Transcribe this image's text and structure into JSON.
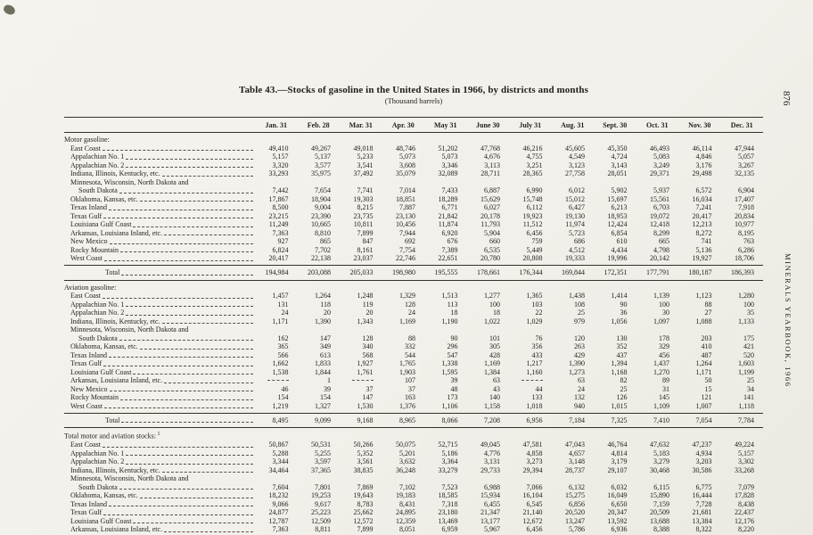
{
  "page": {
    "page_number": "876",
    "margin_label": "MINERALS YEARBOOK, 1966",
    "title": "Table 43.—Stocks of gasoline in the United States in 1966, by districts and months",
    "subtitle": "(Thousand barrels)"
  },
  "colors": {
    "paper": "#f2f1ec",
    "ink": "#201f1b"
  },
  "table": {
    "columns": [
      "Jan. 31",
      "Feb. 28",
      "Mar. 31",
      "Apr. 30",
      "May 31",
      "June 30",
      "July 31",
      "Aug. 31",
      "Sept. 30",
      "Oct. 31",
      "Nov. 30",
      "Dec. 31"
    ],
    "sections": [
      {
        "heading": "Motor gasoline:",
        "rows": [
          {
            "label": "East Coast",
            "values": [
              "49,410",
              "49,267",
              "49,018",
              "48,746",
              "51,202",
              "47,768",
              "46,216",
              "45,605",
              "45,350",
              "46,493",
              "46,114",
              "47,944"
            ]
          },
          {
            "label": "Appalachian No. 1",
            "values": [
              "5,157",
              "5,137",
              "5,233",
              "5,073",
              "5,073",
              "4,676",
              "4,755",
              "4,549",
              "4,724",
              "5,083",
              "4,846",
              "5,057"
            ]
          },
          {
            "label": "Appalachian No. 2",
            "values": [
              "3,320",
              "3,577",
              "3,541",
              "3,608",
              "3,346",
              "3,113",
              "3,251",
              "3,123",
              "3,143",
              "3,249",
              "3,176",
              "3,267"
            ]
          },
          {
            "label": "Indiana, Illinois, Kentucky, etc.",
            "values": [
              "33,293",
              "35,975",
              "37,492",
              "35,079",
              "32,089",
              "28,711",
              "28,365",
              "27,758",
              "28,051",
              "29,371",
              "29,498",
              "32,135"
            ]
          },
          {
            "label": "Minnesota, Wisconsin, North Dakota and",
            "label2": "South Dakota",
            "values": [
              "7,442",
              "7,654",
              "7,741",
              "7,014",
              "7,433",
              "6,887",
              "6,990",
              "6,012",
              "5,902",
              "5,937",
              "6,572",
              "6,904"
            ]
          },
          {
            "label": "Oklahoma, Kansas, etc.",
            "values": [
              "17,867",
              "18,904",
              "19,303",
              "18,851",
              "18,289",
              "15,629",
              "15,748",
              "15,012",
              "15,697",
              "15,561",
              "16,034",
              "17,407"
            ]
          },
          {
            "label": "Texas Inland",
            "values": [
              "8,500",
              "9,004",
              "8,215",
              "7,887",
              "6,771",
              "6,027",
              "6,112",
              "6,427",
              "6,213",
              "6,703",
              "7,241",
              "7,918"
            ]
          },
          {
            "label": "Texas Gulf",
            "values": [
              "23,215",
              "23,390",
              "23,735",
              "23,130",
              "21,842",
              "20,178",
              "19,923",
              "19,130",
              "18,953",
              "19,072",
              "20,417",
              "20,834"
            ]
          },
          {
            "label": "Louisiana Gulf Coast",
            "values": [
              "11,249",
              "10,665",
              "10,811",
              "10,456",
              "11,874",
              "11,793",
              "11,512",
              "11,974",
              "12,424",
              "12,418",
              "12,213",
              "10,977"
            ]
          },
          {
            "label": "Arkansas, Louisiana Inland, etc.",
            "values": [
              "7,363",
              "8,810",
              "7,899",
              "7,944",
              "6,920",
              "5,904",
              "6,456",
              "5,723",
              "6,854",
              "8,299",
              "8,272",
              "8,195"
            ]
          },
          {
            "label": "New Mexico",
            "values": [
              "927",
              "865",
              "847",
              "692",
              "676",
              "660",
              "759",
              "686",
              "610",
              "665",
              "741",
              "763"
            ]
          },
          {
            "label": "Rocky Mountain",
            "values": [
              "6,824",
              "7,702",
              "8,161",
              "7,754",
              "7,389",
              "6,535",
              "5,449",
              "4,512",
              "4,434",
              "4,798",
              "5,136",
              "6,286"
            ]
          },
          {
            "label": "West Coast",
            "values": [
              "20,417",
              "22,138",
              "23,037",
              "22,746",
              "22,651",
              "20,780",
              "20,808",
              "19,333",
              "19,996",
              "20,142",
              "19,927",
              "18,706"
            ]
          }
        ],
        "total": {
          "label": "Total",
          "values": [
            "194,984",
            "203,088",
            "205,033",
            "198,980",
            "195,555",
            "178,661",
            "176,344",
            "169,844",
            "172,351",
            "177,791",
            "180,187",
            "186,393"
          ]
        }
      },
      {
        "heading": "Aviation gasoline:",
        "rows": [
          {
            "label": "East Coast",
            "values": [
              "1,457",
              "1,264",
              "1,248",
              "1,329",
              "1,513",
              "1,277",
              "1,365",
              "1,438",
              "1,414",
              "1,139",
              "1,123",
              "1,280"
            ]
          },
          {
            "label": "Appalachian No. 1",
            "values": [
              "131",
              "118",
              "119",
              "128",
              "113",
              "100",
              "103",
              "108",
              "90",
              "100",
              "88",
              "100"
            ]
          },
          {
            "label": "Appalachian No. 2",
            "values": [
              "24",
              "20",
              "20",
              "24",
              "18",
              "18",
              "22",
              "25",
              "36",
              "30",
              "27",
              "35"
            ]
          },
          {
            "label": "Indiana, Illinois, Kentucky, etc.",
            "values": [
              "1,171",
              "1,390",
              "1,343",
              "1,169",
              "1,190",
              "1,022",
              "1,029",
              "979",
              "1,056",
              "1,097",
              "1,088",
              "1,133"
            ]
          },
          {
            "label": "Minnesota, Wisconsin, North Dakota and",
            "label2": "South Dakota",
            "values": [
              "162",
              "147",
              "128",
              "88",
              "90",
              "101",
              "76",
              "120",
              "130",
              "178",
              "203",
              "175"
            ]
          },
          {
            "label": "Oklahoma, Kansas, etc.",
            "values": [
              "365",
              "349",
              "340",
              "332",
              "296",
              "305",
              "356",
              "263",
              "352",
              "329",
              "410",
              "421"
            ]
          },
          {
            "label": "Texas Inland",
            "values": [
              "566",
              "613",
              "568",
              "544",
              "547",
              "428",
              "433",
              "429",
              "437",
              "456",
              "487",
              "520"
            ]
          },
          {
            "label": "Texas Gulf",
            "values": [
              "1,662",
              "1,833",
              "1,927",
              "1,765",
              "1,338",
              "1,169",
              "1,217",
              "1,390",
              "1,394",
              "1,437",
              "1,264",
              "1,603"
            ]
          },
          {
            "label": "Louisiana Gulf Coast",
            "values": [
              "1,538",
              "1,844",
              "1,761",
              "1,903",
              "1,595",
              "1,384",
              "1,160",
              "1,273",
              "1,168",
              "1,270",
              "1,171",
              "1,199"
            ]
          },
          {
            "label": "Arkansas, Louisiana Inland, etc.",
            "values": [
              "",
              "1",
              "",
              "107",
              "39",
              "63",
              "",
              "63",
              "82",
              "89",
              "50",
              "25"
            ]
          },
          {
            "label": "New Mexico",
            "values": [
              "46",
              "39",
              "37",
              "37",
              "48",
              "43",
              "44",
              "24",
              "25",
              "31",
              "15",
              "34"
            ]
          },
          {
            "label": "Rocky Mountain",
            "values": [
              "154",
              "154",
              "147",
              "163",
              "173",
              "140",
              "133",
              "132",
              "126",
              "145",
              "121",
              "141"
            ]
          },
          {
            "label": "West Coast",
            "values": [
              "1,219",
              "1,327",
              "1,530",
              "1,376",
              "1,106",
              "1,158",
              "1,018",
              "940",
              "1,015",
              "1,109",
              "1,007",
              "1,118"
            ]
          }
        ],
        "total": {
          "label": "Total",
          "values": [
            "8,495",
            "9,099",
            "9,168",
            "8,965",
            "8,066",
            "7,208",
            "6,956",
            "7,184",
            "7,325",
            "7,410",
            "7,054",
            "7,784"
          ]
        }
      },
      {
        "heading": "Total motor and aviation stocks:",
        "heading_sup": "1",
        "rows": [
          {
            "label": "East Coast",
            "values": [
              "50,867",
              "50,531",
              "50,266",
              "50,075",
              "52,715",
              "49,045",
              "47,581",
              "47,043",
              "46,764",
              "47,632",
              "47,237",
              "49,224"
            ]
          },
          {
            "label": "Appalachian No. 1",
            "values": [
              "5,288",
              "5,255",
              "5,352",
              "5,201",
              "5,186",
              "4,776",
              "4,858",
              "4,657",
              "4,814",
              "5,183",
              "4,934",
              "5,157"
            ]
          },
          {
            "label": "Appalachian No. 2",
            "values": [
              "3,344",
              "3,597",
              "3,561",
              "3,632",
              "3,364",
              "3,131",
              "3,273",
              "3,148",
              "3,179",
              "3,279",
              "3,203",
              "3,302"
            ]
          },
          {
            "label": "Indiana, Illinois, Kentucky, etc.",
            "values": [
              "34,464",
              "37,365",
              "38,835",
              "36,248",
              "33,279",
              "29,733",
              "29,394",
              "28,737",
              "29,107",
              "30,468",
              "30,586",
              "33,268"
            ]
          },
          {
            "label": "Minnesota, Wisconsin, North Dakota and",
            "label2": "South Dakota",
            "values": [
              "7,604",
              "7,801",
              "7,869",
              "7,102",
              "7,523",
              "6,988",
              "7,066",
              "6,132",
              "6,032",
              "6,115",
              "6,775",
              "7,079"
            ]
          },
          {
            "label": "Oklahoma, Kansas, etc.",
            "values": [
              "18,232",
              "19,253",
              "19,643",
              "19,183",
              "18,585",
              "15,934",
              "16,104",
              "15,275",
              "16,049",
              "15,890",
              "16,444",
              "17,828"
            ]
          },
          {
            "label": "Texas Inland",
            "values": [
              "9,066",
              "9,617",
              "8,783",
              "8,431",
              "7,318",
              "6,455",
              "6,545",
              "6,856",
              "6,650",
              "7,159",
              "7,728",
              "8,438"
            ]
          },
          {
            "label": "Texas Gulf",
            "values": [
              "24,877",
              "25,223",
              "25,662",
              "24,895",
              "23,180",
              "21,347",
              "21,140",
              "20,520",
              "20,347",
              "20,509",
              "21,681",
              "22,437"
            ]
          },
          {
            "label": "Louisiana Gulf Coast",
            "values": [
              "12,787",
              "12,509",
              "12,572",
              "12,359",
              "13,469",
              "13,177",
              "12,672",
              "13,247",
              "13,592",
              "13,688",
              "13,384",
              "12,176"
            ]
          },
          {
            "label": "Arkansas, Louisiana Inland, etc.",
            "values": [
              "7,363",
              "8,811",
              "7,899",
              "8,051",
              "6,959",
              "5,967",
              "6,456",
              "5,786",
              "6,936",
              "8,388",
              "8,322",
              "8,220"
            ]
          }
        ]
      }
    ]
  }
}
